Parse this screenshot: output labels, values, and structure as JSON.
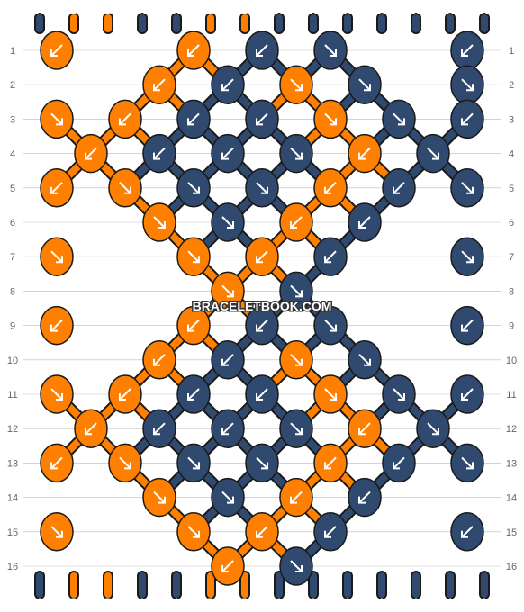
{
  "watermark": "BRACELETBOOK.COM",
  "colors": {
    "A": "#2f4a6e",
    "B": "#ff7f00",
    "outline": "#1a1a1a",
    "gridline": "#bbbbbb",
    "arrow": "#ffffff"
  },
  "strings_top": [
    "A",
    "B",
    "B",
    "A",
    "A",
    "B",
    "B",
    "A",
    "A",
    "A",
    "A",
    "A",
    "A",
    "A"
  ],
  "strings_bottom": [
    "A",
    "B",
    "B",
    "A",
    "A",
    "B",
    "B",
    "A",
    "A",
    "A",
    "A",
    "A",
    "A",
    "A"
  ],
  "row_labels": [
    "1",
    "2",
    "3",
    "4",
    "5",
    "6",
    "7",
    "8",
    "9",
    "10",
    "11",
    "12",
    "13",
    "14",
    "15",
    "16"
  ],
  "rows": [
    [
      {
        "c": "B",
        "a": "sw"
      },
      {
        "c": "B",
        "a": "sw"
      },
      {
        "c": "A",
        "a": "sw"
      },
      {
        "c": "A",
        "a": "se"
      },
      {
        "c": "A",
        "a": "sw"
      }
    ],
    [
      {
        "c": "B",
        "a": "sw"
      },
      {
        "c": "A",
        "a": "sw"
      },
      {
        "c": "B",
        "a": "se"
      },
      {
        "c": "A",
        "a": "se"
      },
      {
        "c": "A",
        "a": "se"
      }
    ],
    [
      {
        "c": "B",
        "a": "se"
      },
      {
        "c": "B",
        "a": "sw"
      },
      {
        "c": "A",
        "a": "sw"
      },
      {
        "c": "A",
        "a": "sw"
      },
      {
        "c": "B",
        "a": "se"
      },
      {
        "c": "A",
        "a": "se"
      },
      {
        "c": "A",
        "a": "sw"
      }
    ],
    [
      {
        "c": "B",
        "a": "sw"
      },
      {
        "c": "A",
        "a": "sw"
      },
      {
        "c": "A",
        "a": "sw"
      },
      {
        "c": "A",
        "a": "se"
      },
      {
        "c": "B",
        "a": "sw"
      },
      {
        "c": "A",
        "a": "se"
      }
    ],
    [
      {
        "c": "B",
        "a": "sw"
      },
      {
        "c": "B",
        "a": "se"
      },
      {
        "c": "A",
        "a": "se"
      },
      {
        "c": "A",
        "a": "se"
      },
      {
        "c": "B",
        "a": "sw"
      },
      {
        "c": "A",
        "a": "sw"
      },
      {
        "c": "A",
        "a": "se"
      }
    ],
    [
      {
        "c": "B",
        "a": "se"
      },
      {
        "c": "A",
        "a": "se"
      },
      {
        "c": "B",
        "a": "sw"
      },
      {
        "c": "A",
        "a": "sw"
      }
    ],
    [
      {
        "c": "B",
        "a": "se"
      },
      {
        "c": "B",
        "a": "se"
      },
      {
        "c": "B",
        "a": "sw"
      },
      {
        "c": "A",
        "a": "sw"
      },
      {
        "c": "A",
        "a": "se"
      }
    ],
    [
      {
        "c": "B",
        "a": "se"
      },
      {
        "c": "A",
        "a": "se"
      }
    ],
    [
      {
        "c": "B",
        "a": "sw"
      },
      {
        "c": "B",
        "a": "sw"
      },
      {
        "c": "A",
        "a": "sw"
      },
      {
        "c": "A",
        "a": "se"
      },
      {
        "c": "A",
        "a": "sw"
      }
    ],
    [
      {
        "c": "B",
        "a": "sw"
      },
      {
        "c": "A",
        "a": "sw"
      },
      {
        "c": "B",
        "a": "se"
      },
      {
        "c": "A",
        "a": "se"
      }
    ],
    [
      {
        "c": "B",
        "a": "se"
      },
      {
        "c": "B",
        "a": "sw"
      },
      {
        "c": "A",
        "a": "sw"
      },
      {
        "c": "A",
        "a": "sw"
      },
      {
        "c": "B",
        "a": "se"
      },
      {
        "c": "A",
        "a": "se"
      },
      {
        "c": "A",
        "a": "sw"
      }
    ],
    [
      {
        "c": "B",
        "a": "sw"
      },
      {
        "c": "A",
        "a": "sw"
      },
      {
        "c": "A",
        "a": "sw"
      },
      {
        "c": "A",
        "a": "se"
      },
      {
        "c": "B",
        "a": "sw"
      },
      {
        "c": "A",
        "a": "se"
      }
    ],
    [
      {
        "c": "B",
        "a": "sw"
      },
      {
        "c": "B",
        "a": "se"
      },
      {
        "c": "A",
        "a": "se"
      },
      {
        "c": "A",
        "a": "se"
      },
      {
        "c": "B",
        "a": "sw"
      },
      {
        "c": "A",
        "a": "sw"
      },
      {
        "c": "A",
        "a": "se"
      }
    ],
    [
      {
        "c": "B",
        "a": "se"
      },
      {
        "c": "A",
        "a": "se"
      },
      {
        "c": "B",
        "a": "sw"
      },
      {
        "c": "A",
        "a": "sw"
      }
    ],
    [
      {
        "c": "B",
        "a": "se"
      },
      {
        "c": "B",
        "a": "se"
      },
      {
        "c": "B",
        "a": "sw"
      },
      {
        "c": "A",
        "a": "sw"
      },
      {
        "c": "A",
        "a": "sw"
      }
    ],
    [
      {
        "c": "B",
        "a": "sw"
      },
      {
        "c": "A",
        "a": "se"
      }
    ]
  ]
}
